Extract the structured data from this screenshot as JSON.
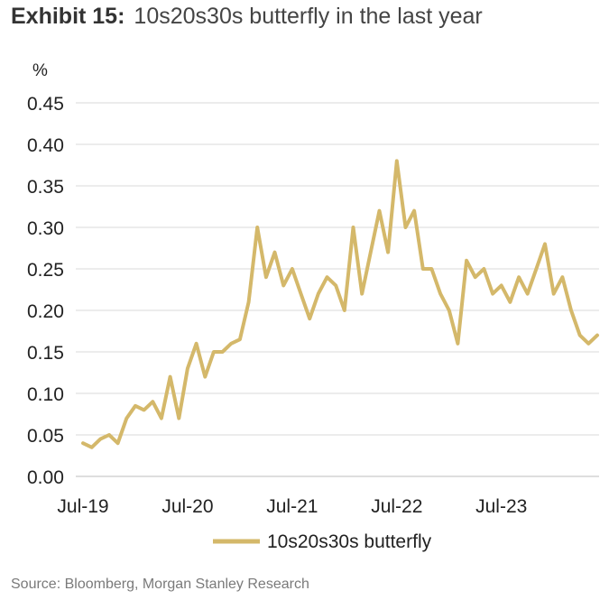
{
  "exhibit_label": "Exhibit 15:",
  "exhibit_title": "10s20s30s butterfly in the last year",
  "source": "Source: Bloomberg, Morgan Stanley Research",
  "chart_data": {
    "type": "line",
    "ylabel": "%",
    "ylim": [
      0,
      0.45
    ],
    "yticks": [
      "0.00",
      "0.05",
      "0.10",
      "0.15",
      "0.20",
      "0.25",
      "0.30",
      "0.35",
      "0.40",
      "0.45"
    ],
    "xlim": [
      "2019-07",
      "2024-06"
    ],
    "xticks": [
      {
        "x": "2019-07",
        "label": "Jul-19"
      },
      {
        "x": "2020-07",
        "label": "Jul-20"
      },
      {
        "x": "2021-07",
        "label": "Jul-21"
      },
      {
        "x": "2022-07",
        "label": "Jul-22"
      },
      {
        "x": "2023-07",
        "label": "Jul-23"
      }
    ],
    "grid": true,
    "legend_position": "bottom-center",
    "color": "#d4b86a",
    "series": [
      {
        "name": "10s20s30s butterfly",
        "x": [
          "2019-07",
          "2019-08",
          "2019-09",
          "2019-10",
          "2019-11",
          "2019-12",
          "2020-01",
          "2020-02",
          "2020-03",
          "2020-04",
          "2020-05",
          "2020-06",
          "2020-07",
          "2020-08",
          "2020-09",
          "2020-10",
          "2020-11",
          "2020-12",
          "2021-01",
          "2021-02",
          "2021-03",
          "2021-04",
          "2021-05",
          "2021-06",
          "2021-07",
          "2021-08",
          "2021-09",
          "2021-10",
          "2021-11",
          "2021-12",
          "2022-01",
          "2022-02",
          "2022-03",
          "2022-04",
          "2022-05",
          "2022-06",
          "2022-07",
          "2022-08",
          "2022-09",
          "2022-10",
          "2022-11",
          "2022-12",
          "2023-01",
          "2023-02",
          "2023-03",
          "2023-04",
          "2023-05",
          "2023-06",
          "2023-07",
          "2023-08",
          "2023-09",
          "2023-10",
          "2023-11",
          "2023-12",
          "2024-01",
          "2024-02",
          "2024-03",
          "2024-04",
          "2024-05",
          "2024-06"
        ],
        "values": [
          0.04,
          0.035,
          0.045,
          0.05,
          0.04,
          0.07,
          0.085,
          0.08,
          0.09,
          0.07,
          0.12,
          0.07,
          0.13,
          0.16,
          0.12,
          0.15,
          0.15,
          0.16,
          0.165,
          0.21,
          0.3,
          0.24,
          0.27,
          0.23,
          0.25,
          0.22,
          0.19,
          0.22,
          0.24,
          0.23,
          0.2,
          0.3,
          0.22,
          0.27,
          0.32,
          0.27,
          0.38,
          0.3,
          0.32,
          0.25,
          0.25,
          0.22,
          0.2,
          0.16,
          0.26,
          0.24,
          0.25,
          0.22,
          0.23,
          0.21,
          0.24,
          0.22,
          0.25,
          0.28,
          0.22,
          0.24,
          0.2,
          0.17,
          0.16,
          0.17
        ]
      }
    ]
  }
}
